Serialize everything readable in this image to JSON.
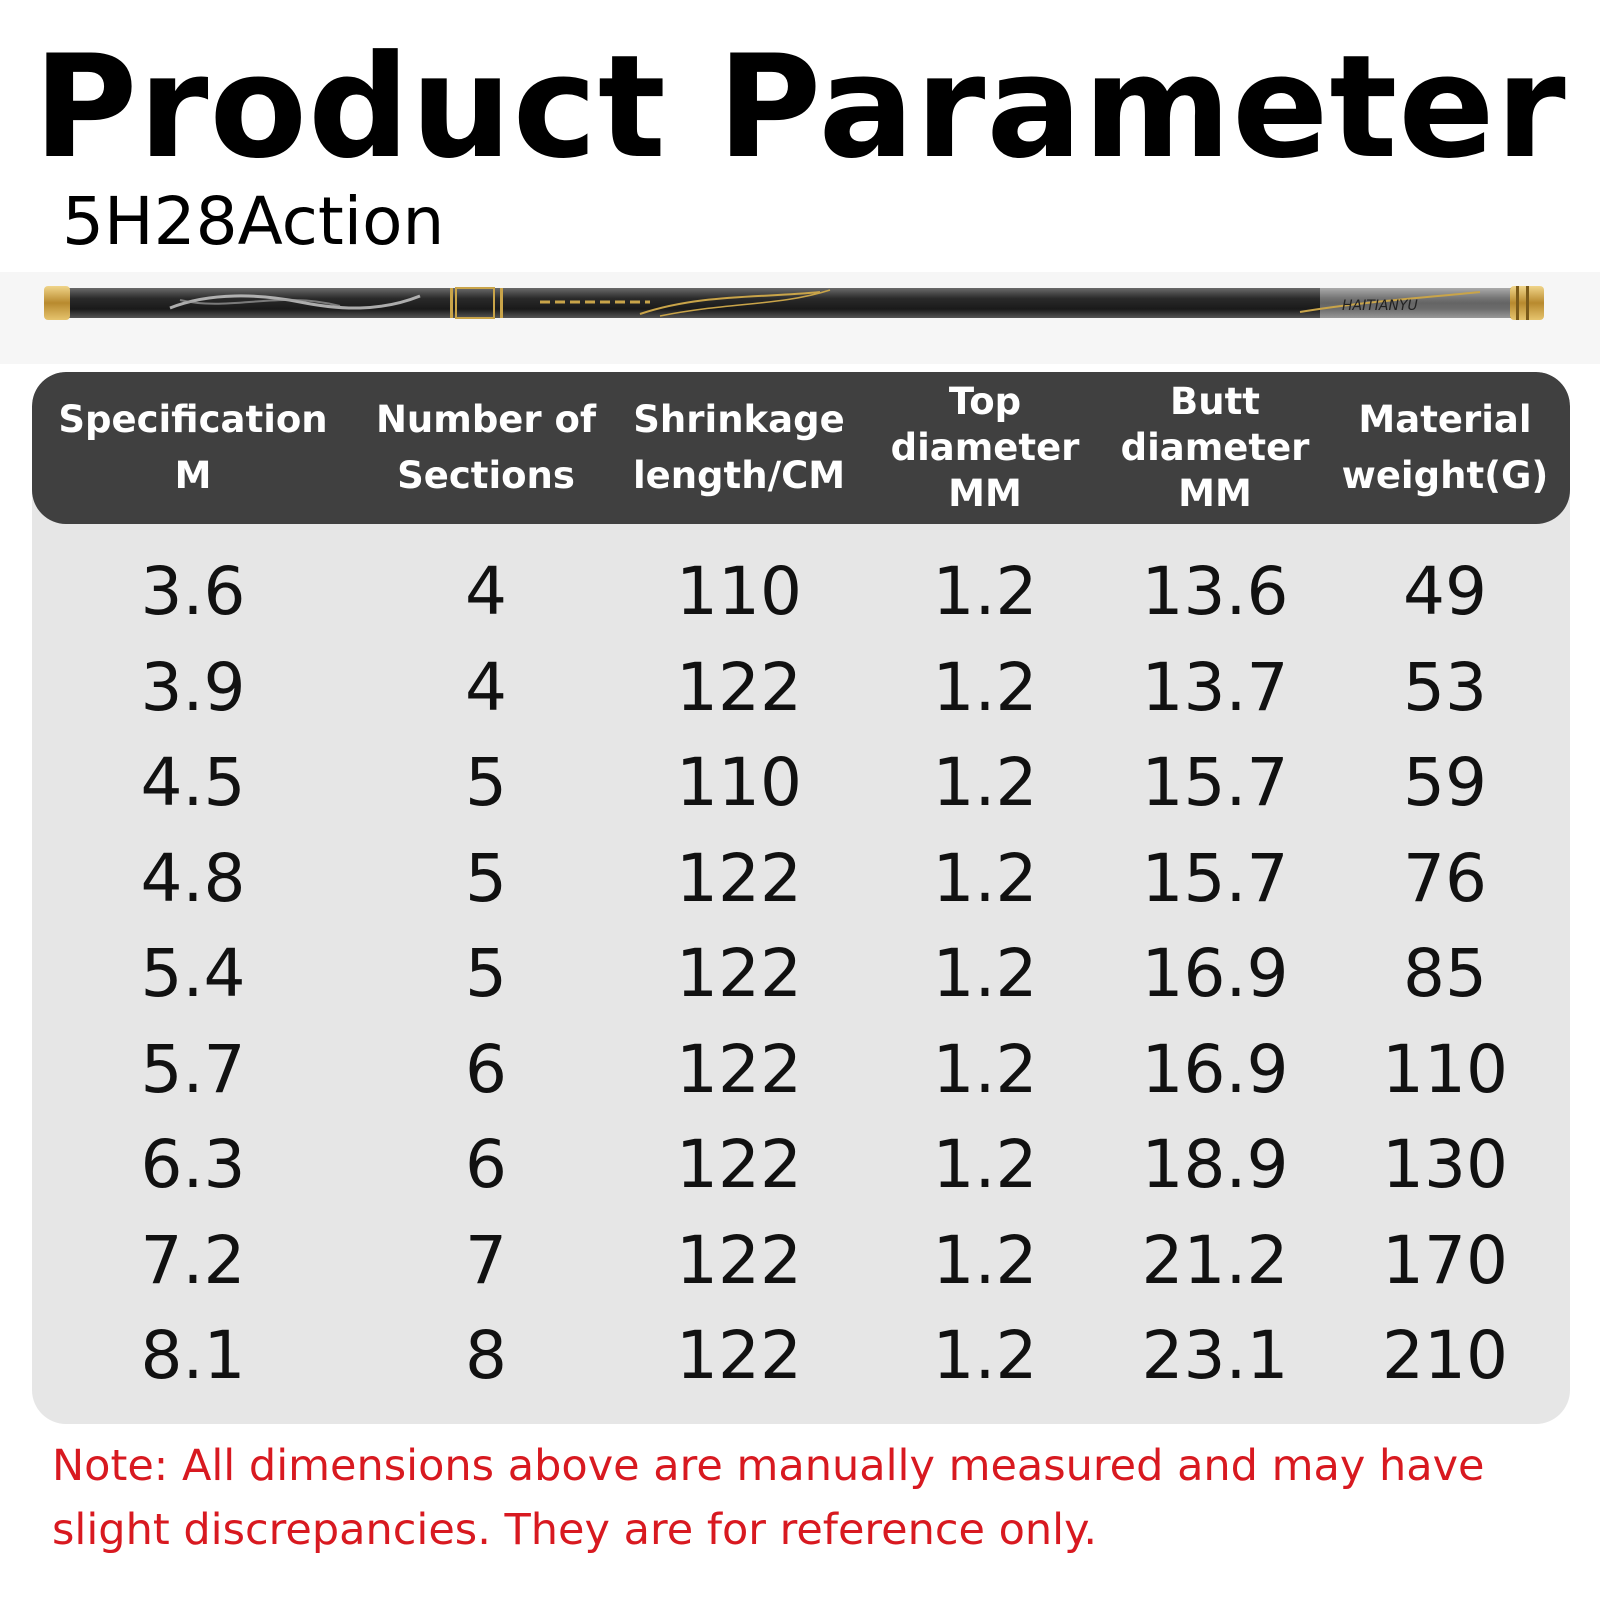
{
  "title": "Product Parameter",
  "subtitle": "5H28Action",
  "rod_image": {
    "brand_text": "HAITIANYU",
    "colors": {
      "body": "#2a2a2a",
      "accent": "#c9a449",
      "cap": "#b88a2e"
    }
  },
  "table": {
    "headers": [
      "Specification\nM",
      "Number of\nSections",
      "Shrinkage\nlength/CM",
      "Top\ndiameter\nMM",
      "Butt\ndiameter\nMM",
      "Material\nweight(G)"
    ],
    "rows": [
      [
        "3.6",
        "4",
        "110",
        "1.2",
        "13.6",
        "49"
      ],
      [
        "3.9",
        "4",
        "122",
        "1.2",
        "13.7",
        "53"
      ],
      [
        "4.5",
        "5",
        "110",
        "1.2",
        "15.7",
        "59"
      ],
      [
        "4.8",
        "5",
        "122",
        "1.2",
        "15.7",
        "76"
      ],
      [
        "5.4",
        "5",
        "122",
        "1.2",
        "16.9",
        "85"
      ],
      [
        "5.7",
        "6",
        "122",
        "1.2",
        "16.9",
        "110"
      ],
      [
        "6.3",
        "6",
        "122",
        "1.2",
        "18.9",
        "130"
      ],
      [
        "7.2",
        "7",
        "122",
        "1.2",
        "21.2",
        "170"
      ],
      [
        "8.1",
        "8",
        "122",
        "1.2",
        "23.1",
        "210"
      ]
    ],
    "colors": {
      "header_bg": "#404040",
      "header_text": "#ffffff",
      "body_bg": "#e6e6e6"
    }
  },
  "note": "Note: All dimensions above are manually measured and may have slight discrepancies. They are for reference only.",
  "note_color": "#d81920"
}
